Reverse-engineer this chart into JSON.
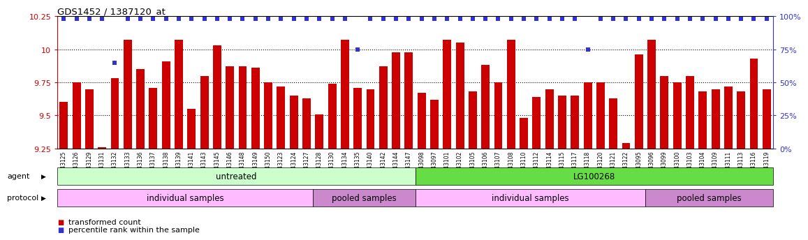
{
  "title": "GDS1452 / 1387120_at",
  "samples": [
    "GSM43125",
    "GSM43126",
    "GSM43129",
    "GSM43131",
    "GSM43132",
    "GSM43133",
    "GSM43136",
    "GSM43137",
    "GSM43138",
    "GSM43139",
    "GSM43141",
    "GSM43143",
    "GSM43145",
    "GSM43146",
    "GSM43148",
    "GSM43149",
    "GSM43150",
    "GSM43123",
    "GSM43124",
    "GSM43127",
    "GSM43128",
    "GSM43130",
    "GSM43134",
    "GSM43135",
    "GSM43140",
    "GSM43142",
    "GSM43144",
    "GSM43147",
    "GSM43098",
    "GSM43097",
    "GSM43101",
    "GSM43102",
    "GSM43105",
    "GSM43106",
    "GSM43107",
    "GSM43108",
    "GSM43110",
    "GSM43112",
    "GSM43114",
    "GSM43115",
    "GSM43117",
    "GSM43118",
    "GSM43120",
    "GSM43121",
    "GSM43122",
    "GSM43095",
    "GSM43096",
    "GSM43099",
    "GSM43100",
    "GSM43103",
    "GSM43104",
    "GSM43109",
    "GSM43111",
    "GSM43113",
    "GSM43116",
    "GSM43119"
  ],
  "bar_values": [
    9.6,
    9.75,
    9.7,
    9.26,
    9.78,
    10.07,
    9.85,
    9.71,
    9.91,
    10.07,
    9.55,
    9.8,
    10.03,
    9.87,
    9.87,
    9.86,
    9.75,
    9.72,
    9.65,
    9.63,
    9.51,
    9.74,
    10.07,
    9.71,
    9.7,
    9.87,
    9.98,
    9.98,
    9.67,
    9.62,
    10.07,
    10.05,
    9.68,
    9.88,
    9.75,
    10.07,
    9.48,
    9.64,
    9.7,
    9.65,
    9.65,
    9.75,
    9.75,
    9.63,
    9.29,
    9.96,
    10.07,
    9.8,
    9.75,
    9.8,
    9.68,
    9.7,
    9.72,
    9.68,
    9.93,
    9.7
  ],
  "percentile_values": [
    98,
    98,
    98,
    98,
    65,
    98,
    98,
    98,
    98,
    98,
    98,
    98,
    98,
    98,
    98,
    98,
    98,
    98,
    98,
    98,
    98,
    98,
    98,
    75,
    98,
    98,
    98,
    98,
    98,
    98,
    98,
    98,
    98,
    98,
    98,
    98,
    98,
    98,
    98,
    98,
    98,
    75,
    98,
    98,
    98,
    98,
    98,
    98,
    98,
    98,
    98,
    98,
    98,
    98,
    98,
    98
  ],
  "bar_color": "#cc0000",
  "dot_color": "#3333cc",
  "bg_color": "#ffffff",
  "plot_bg_color": "#ffffff",
  "ylim_left": [
    9.25,
    10.25
  ],
  "ylim_right": [
    0,
    100
  ],
  "yticks_left": [
    9.25,
    9.5,
    9.75,
    10.0,
    10.25
  ],
  "yticks_left_labels": [
    "9.25",
    "9.5",
    "9.75",
    "10",
    "10.25"
  ],
  "yticks_right": [
    0,
    25,
    50,
    75,
    100
  ],
  "yticks_right_labels": [
    "0%",
    "25%",
    "50%",
    "75%",
    "100%"
  ],
  "agent_groups": [
    {
      "label": "untreated",
      "start": 0,
      "end": 28,
      "color": "#ccffcc"
    },
    {
      "label": "LG100268",
      "start": 28,
      "end": 56,
      "color": "#66dd44"
    }
  ],
  "protocol_groups": [
    {
      "label": "individual samples",
      "start": 0,
      "end": 20,
      "color": "#ffbbff"
    },
    {
      "label": "pooled samples",
      "start": 20,
      "end": 28,
      "color": "#cc88cc"
    },
    {
      "label": "individual samples",
      "start": 28,
      "end": 46,
      "color": "#ffbbff"
    },
    {
      "label": "pooled samples",
      "start": 46,
      "end": 56,
      "color": "#cc88cc"
    }
  ]
}
